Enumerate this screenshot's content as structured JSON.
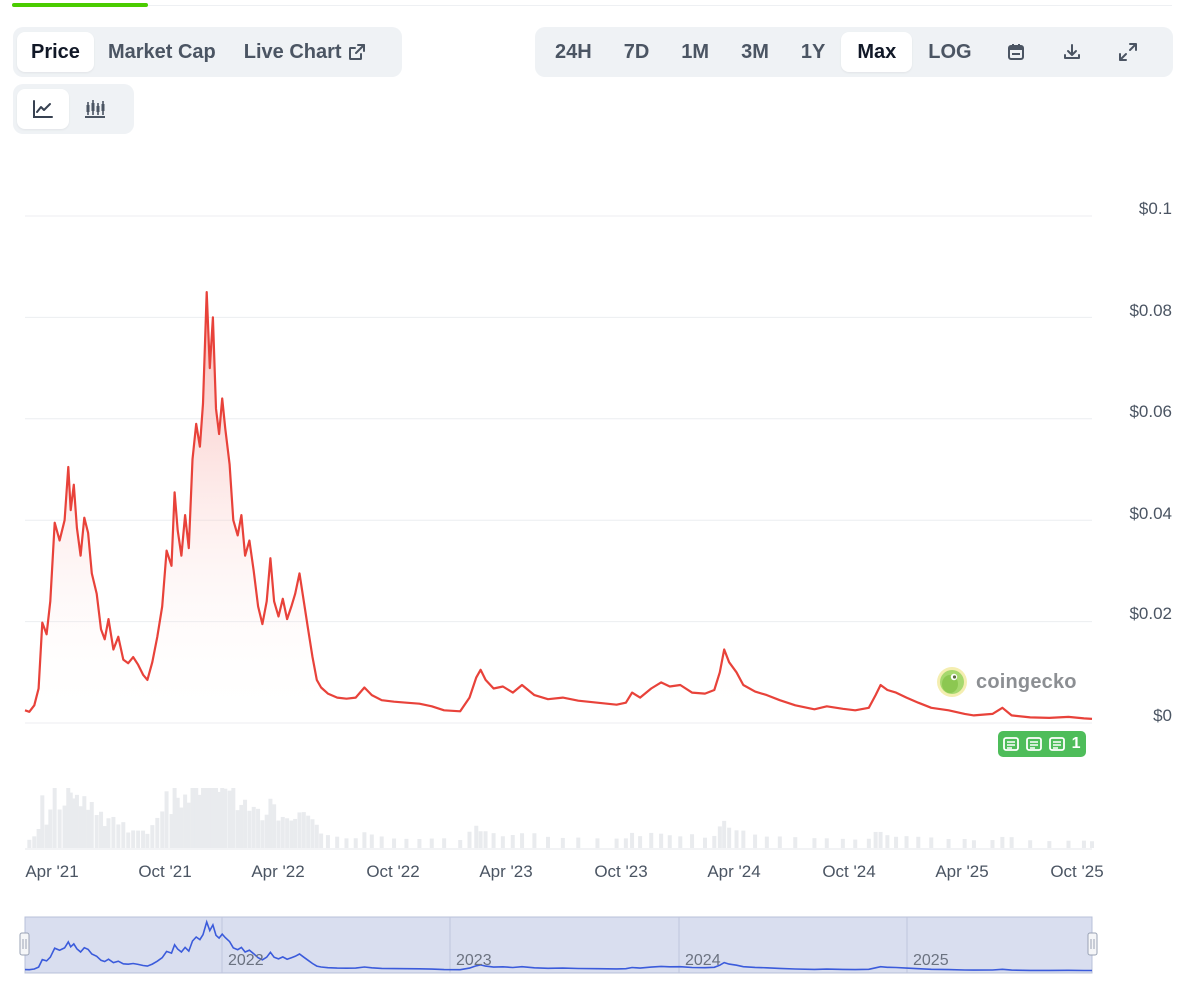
{
  "header": {
    "tabs": [
      {
        "label": "Price",
        "active": true
      },
      {
        "label": "Market Cap",
        "active": false
      },
      {
        "label": "Live Chart",
        "active": false,
        "icon": "external-link-icon"
      }
    ],
    "ranges": [
      {
        "label": "24H",
        "active": false
      },
      {
        "label": "7D",
        "active": false
      },
      {
        "label": "1M",
        "active": false
      },
      {
        "label": "3M",
        "active": false
      },
      {
        "label": "1Y",
        "active": false
      },
      {
        "label": "Max",
        "active": true
      },
      {
        "label": "LOG",
        "active": false
      }
    ],
    "tool_icons": [
      "calendar-icon",
      "download-icon",
      "expand-icon"
    ],
    "chart_types": [
      {
        "icon": "line-chart-icon",
        "active": true
      },
      {
        "icon": "candlestick-icon",
        "active": false
      }
    ]
  },
  "watermark": {
    "text": "coingecko",
    "icon": "gecko-logo-icon"
  },
  "news_badge": {
    "count": "1",
    "icon": "newspaper-icon",
    "color": "#4ebd5a"
  },
  "colors": {
    "price_line": "#e8423a",
    "navigator_line": "#3b5bdb",
    "navigator_fill": "#d9deef",
    "accent": "#4bcc00"
  },
  "chart_data": {
    "type": "area",
    "y_axis": {
      "ticks": [
        "$0.1",
        "$0.08",
        "$0.06",
        "$0.04",
        "$0.02",
        "$0"
      ],
      "range": [
        0,
        0.1
      ]
    },
    "x_axis": {
      "ticks": [
        "Apr '21",
        "Oct '21",
        "Apr '22",
        "Oct '22",
        "Apr '23",
        "Oct '23",
        "Apr '24",
        "Oct '24",
        "Apr '25",
        "Oct '25"
      ]
    },
    "navigator_years": [
      "2022",
      "2023",
      "2024",
      "2025"
    ],
    "grid": true,
    "series": [
      {
        "values": [
          [
            "2021-02-05",
            0.0025
          ],
          [
            "2021-02-12",
            0.0022
          ],
          [
            "2021-02-20",
            0.0035
          ],
          [
            "2021-02-27",
            0.0068
          ],
          [
            "2021-03-05",
            0.0198
          ],
          [
            "2021-03-12",
            0.0175
          ],
          [
            "2021-03-18",
            0.024
          ],
          [
            "2021-03-25",
            0.0395
          ],
          [
            "2021-04-02",
            0.036
          ],
          [
            "2021-04-10",
            0.04
          ],
          [
            "2021-04-16",
            0.0505
          ],
          [
            "2021-04-20",
            0.042
          ],
          [
            "2021-04-25",
            0.047
          ],
          [
            "2021-04-30",
            0.0385
          ],
          [
            "2021-05-06",
            0.033
          ],
          [
            "2021-05-12",
            0.0405
          ],
          [
            "2021-05-18",
            0.0375
          ],
          [
            "2021-05-24",
            0.0295
          ],
          [
            "2021-06-01",
            0.0255
          ],
          [
            "2021-06-08",
            0.0185
          ],
          [
            "2021-06-14",
            0.0165
          ],
          [
            "2021-06-20",
            0.0205
          ],
          [
            "2021-06-28",
            0.0145
          ],
          [
            "2021-07-06",
            0.017
          ],
          [
            "2021-07-14",
            0.0125
          ],
          [
            "2021-07-22",
            0.0118
          ],
          [
            "2021-07-30",
            0.013
          ],
          [
            "2021-08-07",
            0.0115
          ],
          [
            "2021-08-15",
            0.0095
          ],
          [
            "2021-08-22",
            0.0085
          ],
          [
            "2021-08-30",
            0.012
          ],
          [
            "2021-09-07",
            0.017
          ],
          [
            "2021-09-15",
            0.023
          ],
          [
            "2021-09-22",
            0.034
          ],
          [
            "2021-09-30",
            0.031
          ],
          [
            "2021-10-05",
            0.0455
          ],
          [
            "2021-10-10",
            0.038
          ],
          [
            "2021-10-16",
            0.033
          ],
          [
            "2021-10-22",
            0.041
          ],
          [
            "2021-10-28",
            0.0345
          ],
          [
            "2021-11-03",
            0.052
          ],
          [
            "2021-11-09",
            0.059
          ],
          [
            "2021-11-15",
            0.0545
          ],
          [
            "2021-11-20",
            0.063
          ],
          [
            "2021-11-26",
            0.085
          ],
          [
            "2021-12-01",
            0.07
          ],
          [
            "2021-12-06",
            0.08
          ],
          [
            "2021-12-11",
            0.062
          ],
          [
            "2021-12-16",
            0.057
          ],
          [
            "2021-12-21",
            0.064
          ],
          [
            "2021-12-26",
            0.058
          ],
          [
            "2022-01-02",
            0.051
          ],
          [
            "2022-01-08",
            0.04
          ],
          [
            "2022-01-15",
            0.037
          ],
          [
            "2022-01-21",
            0.041
          ],
          [
            "2022-01-27",
            0.033
          ],
          [
            "2022-02-03",
            0.036
          ],
          [
            "2022-02-10",
            0.03
          ],
          [
            "2022-02-17",
            0.023
          ],
          [
            "2022-02-24",
            0.0195
          ],
          [
            "2022-03-03",
            0.024
          ],
          [
            "2022-03-09",
            0.0325
          ],
          [
            "2022-03-15",
            0.024
          ],
          [
            "2022-03-22",
            0.021
          ],
          [
            "2022-03-29",
            0.0245
          ],
          [
            "2022-04-05",
            0.0205
          ],
          [
            "2022-04-12",
            0.023
          ],
          [
            "2022-04-18",
            0.0255
          ],
          [
            "2022-04-25",
            0.0295
          ],
          [
            "2022-05-02",
            0.024
          ],
          [
            "2022-05-09",
            0.0185
          ],
          [
            "2022-05-16",
            0.013
          ],
          [
            "2022-05-23",
            0.0085
          ],
          [
            "2022-05-30",
            0.007
          ],
          [
            "2022-06-10",
            0.0058
          ],
          [
            "2022-06-25",
            0.005
          ],
          [
            "2022-07-10",
            0.0048
          ],
          [
            "2022-07-25",
            0.005
          ],
          [
            "2022-08-08",
            0.007
          ],
          [
            "2022-08-20",
            0.0055
          ],
          [
            "2022-09-05",
            0.0045
          ],
          [
            "2022-09-25",
            0.0042
          ],
          [
            "2022-10-15",
            0.004
          ],
          [
            "2022-11-05",
            0.0038
          ],
          [
            "2022-11-25",
            0.0033
          ],
          [
            "2022-12-15",
            0.0025
          ],
          [
            "2023-01-10",
            0.0023
          ],
          [
            "2023-01-25",
            0.005
          ],
          [
            "2023-02-05",
            0.009
          ],
          [
            "2023-02-12",
            0.0105
          ],
          [
            "2023-02-20",
            0.0085
          ],
          [
            "2023-03-05",
            0.0068
          ],
          [
            "2023-03-20",
            0.0072
          ],
          [
            "2023-04-05",
            0.006
          ],
          [
            "2023-04-20",
            0.0075
          ],
          [
            "2023-05-10",
            0.0055
          ],
          [
            "2023-06-01",
            0.0047
          ],
          [
            "2023-06-25",
            0.005
          ],
          [
            "2023-07-20",
            0.0044
          ],
          [
            "2023-08-20",
            0.004
          ],
          [
            "2023-09-20",
            0.0036
          ],
          [
            "2023-10-05",
            0.004
          ],
          [
            "2023-10-15",
            0.006
          ],
          [
            "2023-10-28",
            0.005
          ],
          [
            "2023-11-15",
            0.0068
          ],
          [
            "2023-12-01",
            0.008
          ],
          [
            "2023-12-15",
            0.0072
          ],
          [
            "2024-01-01",
            0.0075
          ],
          [
            "2024-01-20",
            0.006
          ],
          [
            "2024-02-10",
            0.0058
          ],
          [
            "2024-02-25",
            0.0065
          ],
          [
            "2024-03-05",
            0.01
          ],
          [
            "2024-03-12",
            0.0145
          ],
          [
            "2024-03-20",
            0.012
          ],
          [
            "2024-04-01",
            0.01
          ],
          [
            "2024-04-12",
            0.0075
          ],
          [
            "2024-05-01",
            0.0062
          ],
          [
            "2024-05-20",
            0.0055
          ],
          [
            "2024-06-10",
            0.0045
          ],
          [
            "2024-07-05",
            0.0035
          ],
          [
            "2024-08-05",
            0.0027
          ],
          [
            "2024-08-25",
            0.0033
          ],
          [
            "2024-09-20",
            0.0028
          ],
          [
            "2024-10-10",
            0.0025
          ],
          [
            "2024-11-01",
            0.003
          ],
          [
            "2024-11-12",
            0.0055
          ],
          [
            "2024-11-20",
            0.0075
          ],
          [
            "2024-12-01",
            0.0065
          ],
          [
            "2024-12-15",
            0.006
          ],
          [
            "2025-01-01",
            0.005
          ],
          [
            "2025-01-20",
            0.004
          ],
          [
            "2025-02-10",
            0.003
          ],
          [
            "2025-03-10",
            0.0025
          ],
          [
            "2025-04-05",
            0.0018
          ],
          [
            "2025-04-20",
            0.0015
          ],
          [
            "2025-05-20",
            0.0018
          ],
          [
            "2025-06-05",
            0.003
          ],
          [
            "2025-06-20",
            0.0015
          ],
          [
            "2025-07-20",
            0.0011
          ],
          [
            "2025-08-20",
            0.001
          ],
          [
            "2025-09-20",
            0.0012
          ],
          [
            "2025-10-15",
            0.0009
          ],
          [
            "2025-10-28",
            0.0008
          ]
        ]
      }
    ]
  }
}
